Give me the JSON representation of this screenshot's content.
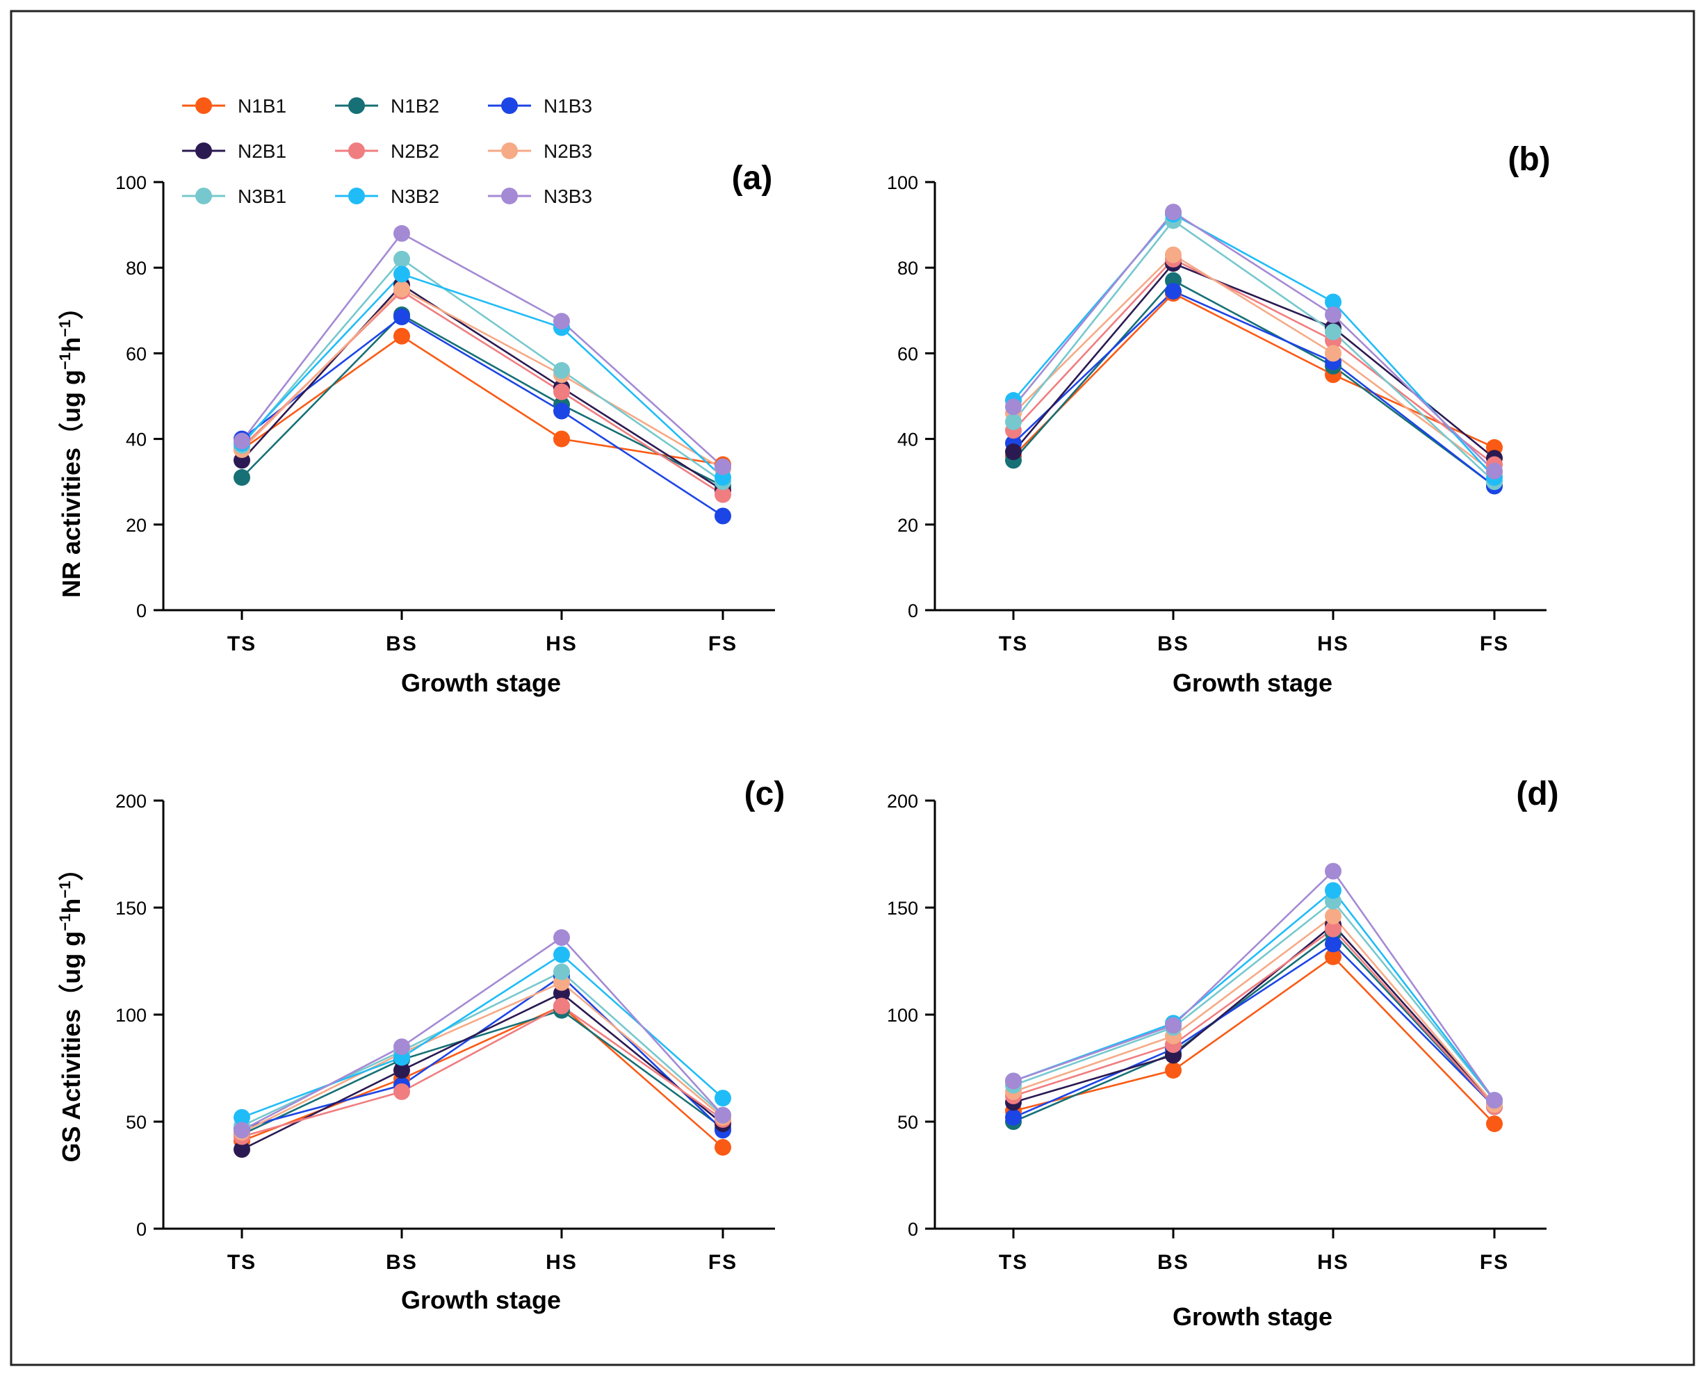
{
  "chart_data": [
    {
      "type": "line",
      "panel_label": "(a)",
      "title": "",
      "xlabel": "Growth stage",
      "ylabel": "NR activities（ug g",
      "ylabel_unit_sup1": "−1",
      "ylabel_unit_mid": "h",
      "ylabel_unit_sup2": "−1",
      "ylabel_close": "）",
      "categories": [
        "TS",
        "BS",
        "HS",
        "FS"
      ],
      "ylim": [
        0,
        100
      ],
      "yticks": [
        0,
        20,
        40,
        60,
        80,
        100
      ],
      "series": [
        {
          "name": "N1B1",
          "values": [
            37.5,
            64,
            40,
            34
          ]
        },
        {
          "name": "N1B2",
          "values": [
            31,
            69,
            48,
            29
          ]
        },
        {
          "name": "N1B3",
          "values": [
            40,
            68.5,
            46.5,
            22
          ]
        },
        {
          "name": "N2B1",
          "values": [
            35,
            76,
            52,
            28
          ]
        },
        {
          "name": "N2B2",
          "values": [
            38,
            74.5,
            51,
            27
          ]
        },
        {
          "name": "N2B3",
          "values": [
            37.5,
            75,
            55,
            33
          ]
        },
        {
          "name": "N3B1",
          "values": [
            38.5,
            82,
            56,
            30
          ]
        },
        {
          "name": "N3B2",
          "values": [
            39,
            78.5,
            66,
            31
          ]
        },
        {
          "name": "N3B3",
          "values": [
            39.5,
            88,
            67.5,
            33.5
          ]
        }
      ]
    },
    {
      "type": "line",
      "panel_label": "(b)",
      "title": "",
      "xlabel": "Growth stage",
      "ylabel": "",
      "categories": [
        "TS",
        "BS",
        "HS",
        "FS"
      ],
      "ylim": [
        0,
        100
      ],
      "yticks": [
        0,
        20,
        40,
        60,
        80,
        100
      ],
      "series": [
        {
          "name": "N1B1",
          "values": [
            36,
            74,
            55,
            38
          ]
        },
        {
          "name": "N1B2",
          "values": [
            35,
            77,
            57,
            29
          ]
        },
        {
          "name": "N1B3",
          "values": [
            39,
            74.5,
            58,
            29
          ]
        },
        {
          "name": "N2B1",
          "values": [
            37,
            81,
            66,
            35.5
          ]
        },
        {
          "name": "N2B2",
          "values": [
            42,
            82,
            63,
            34
          ]
        },
        {
          "name": "N2B3",
          "values": [
            46,
            83,
            60,
            32
          ]
        },
        {
          "name": "N3B1",
          "values": [
            44,
            91,
            65,
            30
          ]
        },
        {
          "name": "N3B2",
          "values": [
            49,
            92.5,
            72,
            31
          ]
        },
        {
          "name": "N3B3",
          "values": [
            47.5,
            93,
            69,
            32.5
          ]
        }
      ]
    },
    {
      "type": "line",
      "panel_label": "(c)",
      "title": "",
      "xlabel": "Growth stage",
      "ylabel": "GS Activities（ug g",
      "ylabel_unit_sup1": "−1",
      "ylabel_unit_mid": "h",
      "ylabel_unit_sup2": "−1",
      "ylabel_close": "）",
      "categories": [
        "TS",
        "BS",
        "HS",
        "FS"
      ],
      "ylim": [
        0,
        200
      ],
      "yticks": [
        0,
        50,
        100,
        150,
        200
      ],
      "series": [
        {
          "name": "N1B1",
          "values": [
            41,
            70,
            104,
            38
          ]
        },
        {
          "name": "N1B2",
          "values": [
            44,
            79,
            102,
            47
          ]
        },
        {
          "name": "N1B3",
          "values": [
            47,
            67,
            118,
            46
          ]
        },
        {
          "name": "N2B1",
          "values": [
            37,
            74,
            110,
            49
          ]
        },
        {
          "name": "N2B2",
          "values": [
            43,
            64,
            104,
            51
          ]
        },
        {
          "name": "N2B3",
          "values": [
            45,
            82,
            115,
            52
          ]
        },
        {
          "name": "N3B1",
          "values": [
            48,
            83,
            120,
            53
          ]
        },
        {
          "name": "N3B2",
          "values": [
            52,
            80,
            128,
            61
          ]
        },
        {
          "name": "N3B3",
          "values": [
            46,
            85,
            136,
            53
          ]
        }
      ]
    },
    {
      "type": "line",
      "panel_label": "(d)",
      "title": "",
      "xlabel": "Growth stage",
      "ylabel": "",
      "categories": [
        "TS",
        "BS",
        "HS",
        "FS"
      ],
      "ylim": [
        0,
        200
      ],
      "yticks": [
        0,
        50,
        100,
        150,
        200
      ],
      "series": [
        {
          "name": "N1B1",
          "values": [
            55,
            74,
            127,
            49
          ]
        },
        {
          "name": "N1B2",
          "values": [
            50,
            82,
            138,
            57
          ]
        },
        {
          "name": "N1B3",
          "values": [
            52,
            84,
            133,
            57
          ]
        },
        {
          "name": "N2B1",
          "values": [
            59,
            81,
            142,
            58
          ]
        },
        {
          "name": "N2B2",
          "values": [
            62,
            86,
            140,
            57
          ]
        },
        {
          "name": "N2B3",
          "values": [
            64,
            90,
            146,
            58
          ]
        },
        {
          "name": "N3B1",
          "values": [
            67,
            94,
            153,
            60
          ]
        },
        {
          "name": "N3B2",
          "values": [
            69,
            96,
            158,
            60
          ]
        },
        {
          "name": "N3B3",
          "values": [
            69,
            95,
            167,
            60
          ]
        }
      ]
    }
  ],
  "legend": {
    "placement": "top-left",
    "items": [
      {
        "name": "N1B1",
        "color": "#fa5a14"
      },
      {
        "name": "N1B2",
        "color": "#167075"
      },
      {
        "name": "N1B3",
        "color": "#1c45e6"
      },
      {
        "name": "N2B1",
        "color": "#2b1a52"
      },
      {
        "name": "N2B2",
        "color": "#f07d80"
      },
      {
        "name": "N2B3",
        "color": "#f6aa86"
      },
      {
        "name": "N3B1",
        "color": "#76c8ce"
      },
      {
        "name": "N3B2",
        "color": "#20bcf7"
      },
      {
        "name": "N3B3",
        "color": "#a48ad4"
      }
    ]
  }
}
